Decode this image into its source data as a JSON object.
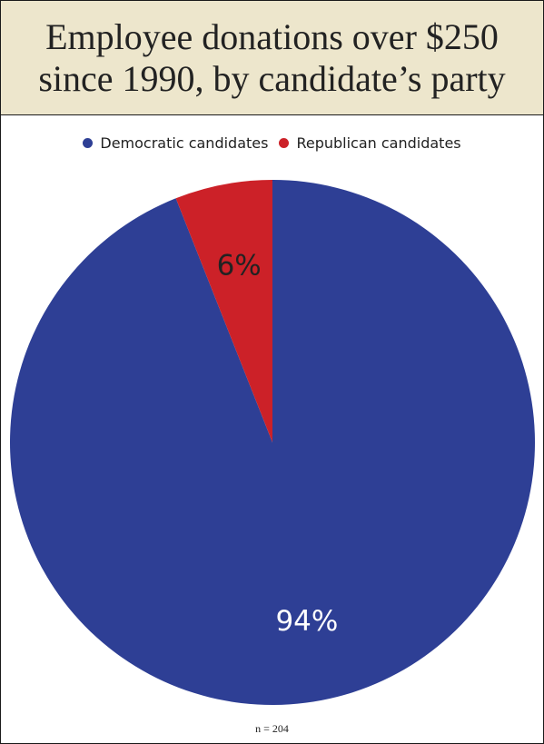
{
  "title": {
    "line1": "Employee donations over $250",
    "line2": "since 1990, by candidate’s party"
  },
  "legend": [
    {
      "label": "Democratic candidates",
      "color": "#2e3f95"
    },
    {
      "label": "Republican candidates",
      "color": "#cc2128"
    }
  ],
  "note": "n = 204",
  "chart_data": {
    "type": "pie",
    "title": "Employee donations over $250 since 1990, by candidate’s party",
    "legend_position": "top",
    "slices": [
      {
        "name": "Democratic candidates",
        "value": 94,
        "label": "94%",
        "color": "#2e3f95",
        "label_color": "#ffffff"
      },
      {
        "name": "Republican candidates",
        "value": 6,
        "label": "6%",
        "color": "#cc2128",
        "label_color": "#222222"
      }
    ]
  }
}
